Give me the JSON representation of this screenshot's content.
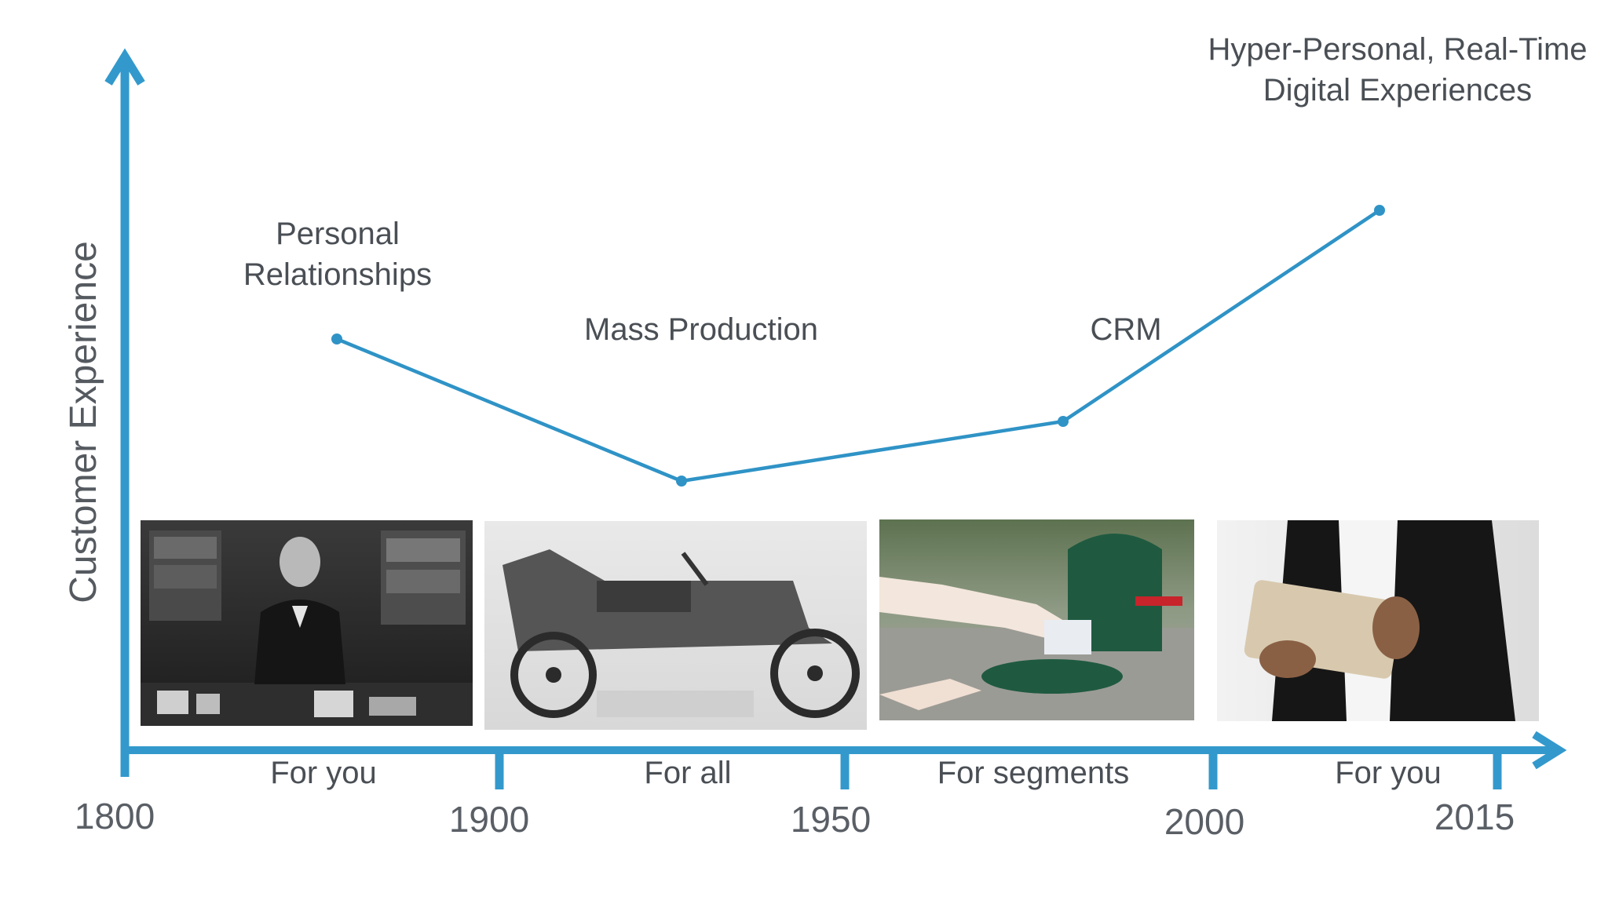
{
  "y_axis_label": "Customer Experience",
  "years": [
    "1800",
    "1900",
    "1950",
    "2000",
    "2015"
  ],
  "eras": [
    "For you",
    "For all",
    "For segments",
    "For you"
  ],
  "milestones": [
    {
      "lines": [
        "Personal",
        "Relationships"
      ]
    },
    {
      "lines": [
        "Mass Production"
      ]
    },
    {
      "lines": [
        "CRM"
      ]
    },
    {
      "lines": [
        "Hyper-Personal, Real-Time",
        "Digital Experiences"
      ]
    }
  ],
  "photos": [
    {
      "subject": "shopkeeper-at-counter"
    },
    {
      "subject": "ford-model-t-advertisement"
    },
    {
      "subject": "hand-putting-mail-in-mailbox"
    },
    {
      "subject": "person-holding-tablet"
    }
  ],
  "colors": {
    "axis": "#3399cc",
    "line": "#2f93c6"
  }
}
